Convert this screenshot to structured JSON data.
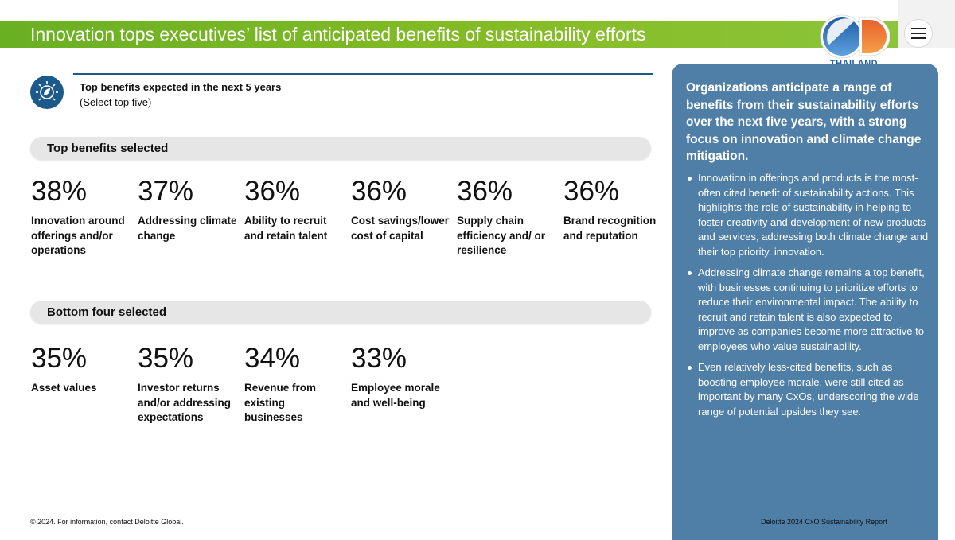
{
  "title": "Innovation tops executives’ list of anticipated benefits of sustainability efforts",
  "logo": {
    "caption": "THAILAND",
    "icon": "sd-thailand-logo"
  },
  "menu": {
    "icon": "hamburger-menu-icon"
  },
  "header": {
    "icon": "lightbulb-leaf-icon",
    "title": "Top benefits expected in the next 5 years",
    "subtitle": "(Select top five)"
  },
  "top_section": {
    "label": "Top benefits selected",
    "stats": [
      {
        "value": "38%",
        "label": "Innovation around offerings and/or operations"
      },
      {
        "value": "37%",
        "label": "Addressing climate change"
      },
      {
        "value": "36%",
        "label": "Ability to recruit and retain talent"
      },
      {
        "value": "36%",
        "label": "Cost savings/lower cost of capital"
      },
      {
        "value": "36%",
        "label": "Supply chain efficiency and/ or resilience"
      },
      {
        "value": "36%",
        "label": "Brand recognition and reputation"
      }
    ]
  },
  "bottom_section": {
    "label": "Bottom four selected",
    "stats": [
      {
        "value": "35%",
        "label": "Asset values"
      },
      {
        "value": "35%",
        "label": "Investor returns and/or addressing expectations"
      },
      {
        "value": "34%",
        "label": "Revenue from existing businesses"
      },
      {
        "value": "33%",
        "label": "Employee morale and well-being"
      }
    ]
  },
  "side_panel": {
    "lead": "Organizations anticipate a range of benefits from their sustainability efforts over the next five years, with a strong focus on innovation and climate change mitigation.",
    "bullets": [
      "Innovation in offerings and products is the most-often cited benefit of sustainability actions. This highlights the role of sustainability in helping to foster creativity and development of new products and services, addressing both climate change and their top priority, innovation.",
      "Addressing climate change remains a top benefit, with businesses continuing to prioritize efforts to reduce their environmental impact. The ability to recruit and retain talent is also expected to improve as companies become more attractive to employees who value sustainability.",
      "Even relatively less-cited benefits, such as boosting employee morale, were still cited as important by many CxOs, underscoring the wide range of potential upsides they see."
    ]
  },
  "footer": {
    "left": "© 2024. For information, contact Deloitte Global.",
    "right": "Deloitte 2024 CxO Sustainability Report"
  },
  "colors": {
    "title_bar": "#86bc25",
    "panel": "#4f7fa6",
    "icon_circle": "#1b5a8a",
    "pill": "#e6e6e6"
  }
}
